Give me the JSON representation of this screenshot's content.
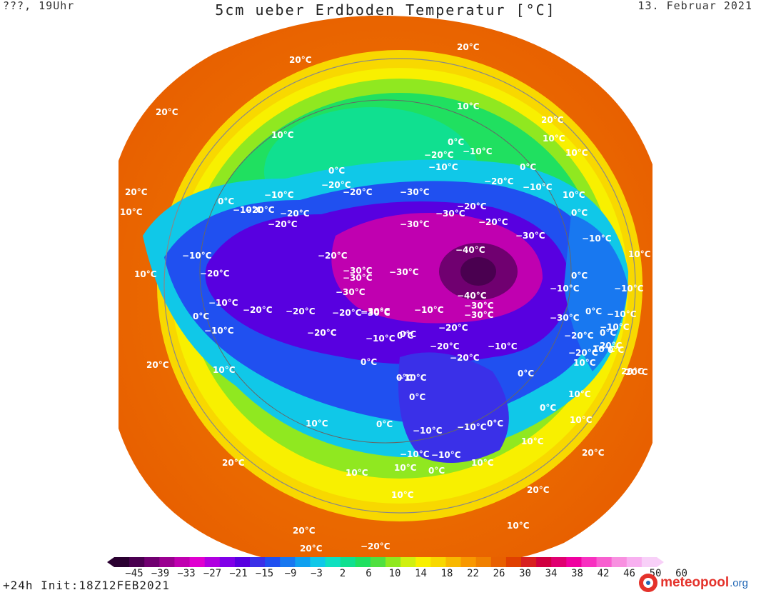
{
  "header": {
    "left": "???, 19Uhr",
    "title": "5cm ueber Erdboden Temperatur [°C]",
    "right": "13. Februar 2021"
  },
  "footer": {
    "left": "+24h Init:18Z12FEB2021",
    "logo_main": "meteopool",
    "logo_suffix": ".org"
  },
  "colorbar": {
    "tick_labels": [
      "−45",
      "−39",
      "−33",
      "−27",
      "−21",
      "−15",
      "−9",
      "−3",
      "2",
      "6",
      "10",
      "14",
      "18",
      "22",
      "26",
      "30",
      "34",
      "38",
      "42",
      "46",
      "50",
      "60"
    ],
    "colors": [
      "#2a0030",
      "#4a0050",
      "#700070",
      "#9a0090",
      "#c000b0",
      "#e000d0",
      "#b000e0",
      "#8000e8",
      "#5800e0",
      "#3a30e8",
      "#2050f0",
      "#1878f0",
      "#10a0f0",
      "#10c8e8",
      "#10e0c0",
      "#10e090",
      "#20e060",
      "#50e040",
      "#90e820",
      "#d0f010",
      "#f8f000",
      "#f8d800",
      "#f8b800",
      "#f89800",
      "#f08000",
      "#e86000",
      "#e04000",
      "#d82020",
      "#d00040",
      "#e00070",
      "#f000a0",
      "#f830c0",
      "#f860d0",
      "#f890e0",
      "#f8b0f0",
      "#f8d0f8"
    ]
  },
  "map_labels": [
    {
      "t": "20°C"
    },
    {
      "t": "20°C"
    },
    {
      "t": "10°C"
    },
    {
      "t": "20°C"
    },
    {
      "t": "10°C"
    },
    {
      "t": "20°C"
    },
    {
      "t": "10°C"
    },
    {
      "t": "10°C"
    },
    {
      "t": "0°C"
    },
    {
      "t": "−20°C"
    },
    {
      "t": "−10°C"
    },
    {
      "t": "0°C"
    },
    {
      "t": "−10°C"
    },
    {
      "t": "−20°C"
    },
    {
      "t": "−20°C"
    },
    {
      "t": "0°C"
    },
    {
      "t": "−10°C"
    },
    {
      "t": "−30°C"
    },
    {
      "t": "−20°C"
    },
    {
      "t": "−20°C"
    },
    {
      "t": "−10°C"
    },
    {
      "t": "10°C"
    },
    {
      "t": "0°C"
    },
    {
      "t": "−10°C"
    },
    {
      "t": "−20°C"
    },
    {
      "t": "−30°C"
    },
    {
      "t": "−30°C"
    },
    {
      "t": "−20°C"
    },
    {
      "t": "−20°C"
    },
    {
      "t": "20°C"
    },
    {
      "t": "10°C"
    },
    {
      "t": "0°C"
    },
    {
      "t": "−10°C"
    },
    {
      "t": "−20°C"
    },
    {
      "t": "−20°C"
    },
    {
      "t": "−30°C"
    },
    {
      "t": "−30°C"
    },
    {
      "t": "−40°C"
    },
    {
      "t": "−30°C"
    },
    {
      "t": "−10°C"
    },
    {
      "t": "10°C"
    },
    {
      "t": "10°C"
    },
    {
      "t": "−20°C"
    },
    {
      "t": "−30°C"
    },
    {
      "t": "−30°C"
    },
    {
      "t": "−30°C"
    },
    {
      "t": "−20°C"
    },
    {
      "t": "0°C"
    },
    {
      "t": "10°C"
    },
    {
      "t": "20°C"
    },
    {
      "t": "−10°C"
    },
    {
      "t": "−20°C"
    },
    {
      "t": "−20°C"
    },
    {
      "t": "−30°C"
    },
    {
      "t": "−40°C"
    },
    {
      "t": "−10°C"
    },
    {
      "t": "−10°C"
    },
    {
      "t": "0°C"
    },
    {
      "t": "−10°C"
    },
    {
      "t": "−20°C"
    },
    {
      "t": "−30°C"
    },
    {
      "t": "−30°C"
    },
    {
      "t": "−10°C"
    },
    {
      "t": "−20°C"
    },
    {
      "t": "0°C"
    },
    {
      "t": "−10°C"
    },
    {
      "t": "−20°C"
    },
    {
      "t": "−20°C"
    },
    {
      "t": "0°C"
    },
    {
      "t": "−10°C"
    },
    {
      "t": "0°C"
    },
    {
      "t": "−20°C"
    },
    {
      "t": "0°C"
    },
    {
      "t": "20°C"
    },
    {
      "t": "10°C"
    },
    {
      "t": "0°C"
    },
    {
      "t": "−10°C"
    },
    {
      "t": "0°C"
    },
    {
      "t": "−10°C"
    },
    {
      "t": "10°C"
    },
    {
      "t": "0°C"
    },
    {
      "t": "10°C"
    },
    {
      "t": "−10°C"
    },
    {
      "t": "−10°C"
    },
    {
      "t": "0°C"
    },
    {
      "t": "10°C"
    },
    {
      "t": "20°C"
    },
    {
      "t": "−10°C"
    },
    {
      "t": "10°C"
    },
    {
      "t": "0°C"
    },
    {
      "t": "10°C"
    },
    {
      "t": "10°C"
    },
    {
      "t": "20°C"
    },
    {
      "t": "10°C"
    },
    {
      "t": "20°C"
    },
    {
      "t": "20°C"
    },
    {
      "t": "20°C"
    },
    {
      "t": "−20°C"
    },
    {
      "t": "−30°C"
    },
    {
      "t": "−20°C"
    },
    {
      "t": "−10°C"
    },
    {
      "t": "0°C"
    },
    {
      "t": "0°C"
    },
    {
      "t": "−10°C"
    },
    {
      "t": "20°C"
    },
    {
      "t": "−20°C"
    },
    {
      "t": "10°C"
    },
    {
      "t": "0°C"
    },
    {
      "t": "10°C"
    },
    {
      "t": "0°C"
    },
    {
      "t": "10°C"
    }
  ]
}
